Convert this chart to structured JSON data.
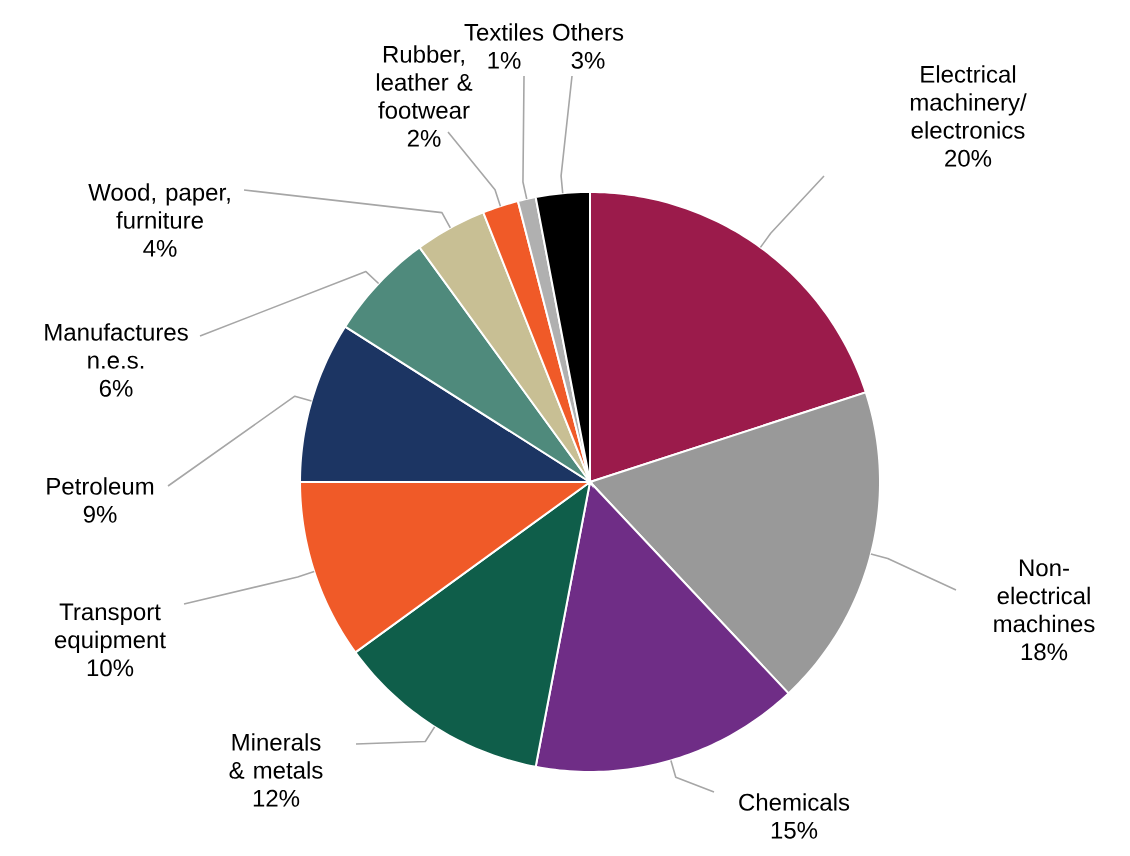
{
  "chart_data": {
    "type": "pie",
    "categories": [
      "Electrical machinery/ electronics",
      "Non-electrical machines",
      "Chemicals",
      "Minerals & metals",
      "Transport equipment",
      "Petroleum",
      "Manufactures n.e.s.",
      "Wood, paper, furniture",
      "Rubber, leather & footwear",
      "Textiles",
      "Others"
    ],
    "values": [
      20,
      18,
      15,
      12,
      10,
      9,
      6,
      4,
      2,
      1,
      3
    ],
    "value_labels": [
      "20%",
      "18%",
      "15%",
      "12%",
      "10%",
      "9%",
      "6%",
      "4%",
      "2%",
      "1%",
      "3%"
    ],
    "colors": [
      "#9b1b4b",
      "#999999",
      "#6f2d86",
      "#0f5e4a",
      "#f05a28",
      "#1c3563",
      "#4f8a7c",
      "#c8bf94",
      "#f05a28",
      "#b0b0b0",
      "#000000"
    ]
  }
}
